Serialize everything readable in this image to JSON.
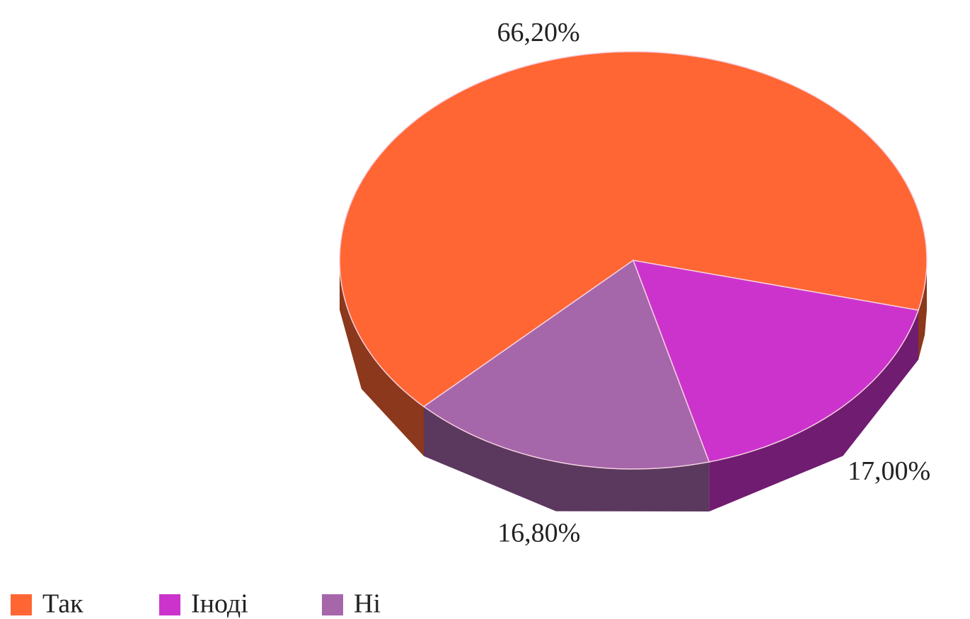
{
  "chart_data": {
    "type": "pie",
    "categories": [
      "Так",
      "Іноді",
      "Ні"
    ],
    "values": [
      66.2,
      17.0,
      16.8
    ],
    "value_labels": [
      "66,20%",
      "17,00%",
      "16,80%"
    ],
    "colors": [
      "#ff6633",
      "#cc33cc",
      "#a666aa"
    ],
    "legend": "bottom"
  }
}
